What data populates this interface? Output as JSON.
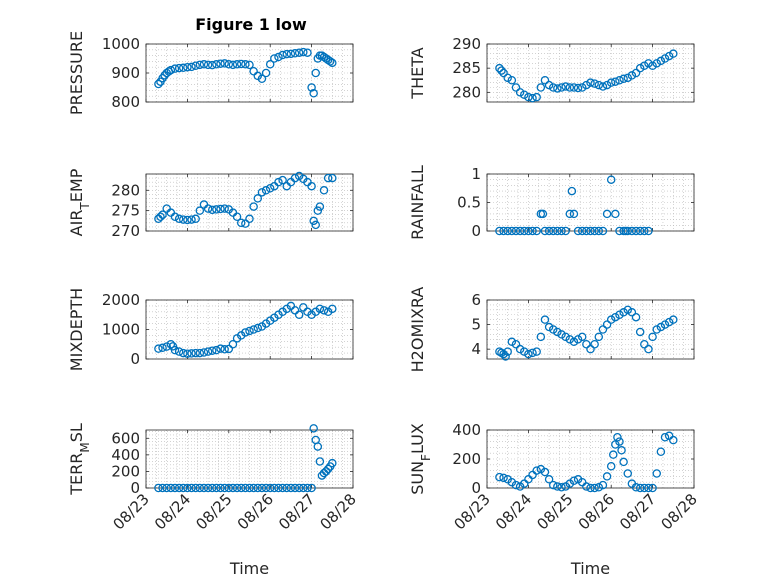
{
  "figure": {
    "title": "Figure 1 low",
    "marker_color": "#0072BD"
  },
  "chart_data": [
    {
      "type": "scatter",
      "title": "Figure 1 low",
      "xlabel": "",
      "ylabel": "PRESSURE",
      "xlim": [
        0,
        5
      ],
      "ylim": [
        800,
        1000
      ],
      "xticks": [
        0,
        1,
        2,
        3,
        4,
        5
      ],
      "xticklabels": [
        "",
        "",
        "",
        "",
        "",
        ""
      ],
      "yticks": [
        800,
        900,
        1000
      ],
      "yticklabels": [
        "800",
        "900",
        "1000"
      ],
      "grid": "dotted",
      "x": [
        0.3,
        0.35,
        0.4,
        0.45,
        0.5,
        0.55,
        0.6,
        0.7,
        0.8,
        0.9,
        1.0,
        1.1,
        1.2,
        1.3,
        1.4,
        1.5,
        1.6,
        1.7,
        1.8,
        1.9,
        2.0,
        2.1,
        2.2,
        2.3,
        2.4,
        2.5,
        2.6,
        2.7,
        2.8,
        2.9,
        3.0,
        3.1,
        3.2,
        3.3,
        3.4,
        3.5,
        3.6,
        3.7,
        3.8,
        3.9,
        4.0,
        4.05,
        4.1,
        4.15,
        4.2,
        4.25,
        4.3,
        4.35,
        4.4,
        4.45,
        4.5
      ],
      "y": [
        862,
        870,
        882,
        892,
        900,
        905,
        910,
        915,
        917,
        918,
        920,
        921,
        925,
        928,
        930,
        928,
        927,
        930,
        932,
        933,
        930,
        928,
        930,
        931,
        930,
        928,
        906,
        890,
        880,
        900,
        930,
        950,
        955,
        962,
        965,
        966,
        968,
        970,
        972,
        970,
        850,
        830,
        900,
        950,
        960,
        960,
        955,
        950,
        945,
        940,
        935
      ]
    },
    {
      "type": "scatter",
      "xlabel": "",
      "ylabel": "THETA",
      "xlim": [
        0,
        5
      ],
      "ylim": [
        278,
        290
      ],
      "xticks": [
        0,
        1,
        2,
        3,
        4,
        5
      ],
      "xticklabels": [
        "",
        "",
        "",
        "",
        "",
        ""
      ],
      "yticks": [
        280,
        285,
        290
      ],
      "yticklabels": [
        "280",
        "285",
        "290"
      ],
      "grid": "dotted",
      "x": [
        0.3,
        0.35,
        0.4,
        0.5,
        0.6,
        0.7,
        0.8,
        0.9,
        1.0,
        1.1,
        1.2,
        1.3,
        1.4,
        1.5,
        1.6,
        1.7,
        1.8,
        1.9,
        2.0,
        2.1,
        2.2,
        2.3,
        2.4,
        2.5,
        2.6,
        2.7,
        2.8,
        2.9,
        3.0,
        3.1,
        3.2,
        3.3,
        3.4,
        3.5,
        3.6,
        3.7,
        3.8,
        3.9,
        4.0,
        4.1,
        4.2,
        4.3,
        4.4,
        4.5
      ],
      "y": [
        285,
        284.5,
        284,
        283,
        282.5,
        281,
        280,
        279.5,
        279,
        278.8,
        279,
        281,
        282.5,
        281.5,
        281,
        280.8,
        281,
        281.2,
        281,
        281,
        280.9,
        281,
        281.5,
        282,
        281.8,
        281.5,
        281.2,
        281.5,
        282,
        282.2,
        282.5,
        282.8,
        283,
        283.5,
        284,
        285,
        285.5,
        286,
        285.5,
        286,
        286.5,
        287,
        287.5,
        288
      ]
    },
    {
      "type": "scatter",
      "xlabel": "",
      "ylabel": "AIR_TEMP",
      "xlim": [
        0,
        5
      ],
      "ylim": [
        270,
        284
      ],
      "xticks": [
        0,
        1,
        2,
        3,
        4,
        5
      ],
      "xticklabels": [
        "",
        "",
        "",
        "",
        "",
        ""
      ],
      "yticks": [
        270,
        275,
        280
      ],
      "yticklabels": [
        "270",
        "275",
        "280"
      ],
      "grid": "dotted",
      "x": [
        0.3,
        0.35,
        0.4,
        0.5,
        0.6,
        0.7,
        0.8,
        0.9,
        1.0,
        1.1,
        1.2,
        1.3,
        1.4,
        1.5,
        1.6,
        1.7,
        1.8,
        1.9,
        2.0,
        2.1,
        2.2,
        2.3,
        2.4,
        2.5,
        2.6,
        2.7,
        2.8,
        2.9,
        3.0,
        3.1,
        3.2,
        3.3,
        3.4,
        3.5,
        3.6,
        3.7,
        3.8,
        3.9,
        4.0,
        4.05,
        4.1,
        4.15,
        4.2,
        4.3,
        4.4,
        4.5
      ],
      "y": [
        273,
        273.5,
        274,
        275.5,
        274.5,
        273.5,
        273,
        272.8,
        272.7,
        272.8,
        273,
        275,
        276.5,
        275.5,
        275.2,
        275.3,
        275.4,
        275.5,
        275.3,
        274.5,
        273.5,
        272,
        271.8,
        273,
        276,
        278,
        279.5,
        280,
        280.5,
        281,
        282,
        282.5,
        281,
        282,
        283,
        283.5,
        282.8,
        282,
        281,
        272.5,
        271.5,
        275,
        276,
        280,
        283,
        283
      ]
    },
    {
      "type": "scatter",
      "xlabel": "",
      "ylabel": "RAINFALL",
      "xlim": [
        0,
        5
      ],
      "ylim": [
        0,
        1
      ],
      "xticks": [
        0,
        1,
        2,
        3,
        4,
        5
      ],
      "xticklabels": [
        "",
        "",
        "",
        "",
        "",
        ""
      ],
      "yticks": [
        0,
        0.5,
        1
      ],
      "yticklabels": [
        "0",
        "0.5",
        "1"
      ],
      "grid": "dotted",
      "x": [
        0.3,
        0.4,
        0.5,
        0.6,
        0.7,
        0.8,
        0.9,
        1.0,
        1.1,
        1.2,
        1.3,
        1.35,
        1.4,
        1.5,
        1.6,
        1.7,
        1.8,
        1.9,
        2.0,
        2.05,
        2.1,
        2.2,
        2.3,
        2.4,
        2.5,
        2.6,
        2.7,
        2.8,
        2.9,
        3.0,
        3.1,
        3.2,
        3.3,
        3.35,
        3.4,
        3.5,
        3.6,
        3.7,
        3.8,
        3.9
      ],
      "y": [
        0,
        0,
        0,
        0,
        0,
        0,
        0,
        0,
        0,
        0,
        0.3,
        0.3,
        0,
        0,
        0,
        0,
        0,
        0,
        0.3,
        0.7,
        0.3,
        0,
        0,
        0,
        0,
        0,
        0,
        0,
        0.3,
        0.9,
        0.3,
        0,
        0,
        0,
        0,
        0,
        0,
        0,
        0,
        0
      ]
    },
    {
      "type": "scatter",
      "xlabel": "",
      "ylabel": "MIXDEPTH",
      "xlim": [
        0,
        5
      ],
      "ylim": [
        0,
        2000
      ],
      "xticks": [
        0,
        1,
        2,
        3,
        4,
        5
      ],
      "xticklabels": [
        "",
        "",
        "",
        "",
        "",
        ""
      ],
      "yticks": [
        0,
        1000,
        2000
      ],
      "yticklabels": [
        "0",
        "1000",
        "2000"
      ],
      "grid": "dotted",
      "x": [
        0.3,
        0.4,
        0.5,
        0.6,
        0.65,
        0.7,
        0.8,
        0.9,
        1.0,
        1.1,
        1.2,
        1.3,
        1.4,
        1.5,
        1.6,
        1.7,
        1.8,
        1.9,
        2.0,
        2.1,
        2.2,
        2.3,
        2.4,
        2.5,
        2.6,
        2.7,
        2.8,
        2.9,
        3.0,
        3.1,
        3.2,
        3.3,
        3.4,
        3.5,
        3.6,
        3.7,
        3.8,
        3.9,
        4.0,
        4.1,
        4.2,
        4.3,
        4.4,
        4.5
      ],
      "y": [
        350,
        380,
        420,
        500,
        430,
        300,
        250,
        200,
        180,
        190,
        200,
        200,
        220,
        250,
        280,
        300,
        350,
        330,
        340,
        500,
        700,
        800,
        900,
        950,
        1000,
        1050,
        1100,
        1200,
        1300,
        1400,
        1500,
        1600,
        1700,
        1800,
        1650,
        1500,
        1750,
        1600,
        1500,
        1600,
        1700,
        1650,
        1600,
        1700
      ]
    },
    {
      "type": "scatter",
      "xlabel": "",
      "ylabel": "H2OMIXRA",
      "xlim": [
        0,
        5
      ],
      "ylim": [
        3.6,
        6
      ],
      "xticks": [
        0,
        1,
        2,
        3,
        4,
        5
      ],
      "xticklabels": [
        "",
        "",
        "",
        "",
        "",
        ""
      ],
      "yticks": [
        4,
        5,
        6
      ],
      "yticklabels": [
        "4",
        "5",
        "6"
      ],
      "grid": "dotted",
      "x": [
        0.3,
        0.35,
        0.4,
        0.45,
        0.5,
        0.6,
        0.7,
        0.8,
        0.9,
        1.0,
        1.1,
        1.2,
        1.3,
        1.4,
        1.5,
        1.6,
        1.7,
        1.8,
        1.9,
        2.0,
        2.1,
        2.2,
        2.3,
        2.4,
        2.5,
        2.6,
        2.7,
        2.8,
        2.9,
        3.0,
        3.1,
        3.2,
        3.3,
        3.4,
        3.5,
        3.6,
        3.7,
        3.8,
        3.9,
        4.0,
        4.1,
        4.2,
        4.3,
        4.4,
        4.5
      ],
      "y": [
        3.9,
        3.85,
        3.8,
        3.7,
        3.9,
        4.3,
        4.2,
        4.0,
        3.9,
        3.8,
        3.85,
        3.9,
        4.5,
        5.2,
        4.9,
        4.8,
        4.7,
        4.6,
        4.5,
        4.4,
        4.3,
        4.4,
        4.5,
        4.2,
        4.0,
        4.2,
        4.5,
        4.8,
        5.0,
        5.2,
        5.3,
        5.4,
        5.5,
        5.6,
        5.5,
        5.3,
        4.7,
        4.2,
        4.0,
        4.5,
        4.8,
        4.9,
        5.0,
        5.1,
        5.2
      ]
    },
    {
      "type": "scatter",
      "xlabel": "Time",
      "ylabel": "TERR_MSL",
      "xlim": [
        0,
        5
      ],
      "ylim": [
        0,
        700
      ],
      "xticks": [
        0,
        1,
        2,
        3,
        4,
        5
      ],
      "xticklabels": [
        "08/23",
        "08/24",
        "08/25",
        "08/26",
        "08/27",
        "08/28"
      ],
      "yticks": [
        0,
        200,
        400,
        600
      ],
      "yticklabels": [
        "0",
        "200",
        "400",
        "600"
      ],
      "grid": "dotted",
      "x": [
        0.3,
        0.4,
        0.5,
        0.6,
        0.7,
        0.8,
        0.9,
        1.0,
        1.1,
        1.2,
        1.3,
        1.4,
        1.5,
        1.6,
        1.7,
        1.8,
        1.9,
        2.0,
        2.1,
        2.2,
        2.3,
        2.4,
        2.5,
        2.6,
        2.7,
        2.8,
        2.9,
        3.0,
        3.1,
        3.2,
        3.3,
        3.4,
        3.5,
        3.6,
        3.7,
        3.8,
        3.9,
        4.0,
        4.05,
        4.1,
        4.15,
        4.2,
        4.25,
        4.3,
        4.35,
        4.4,
        4.45,
        4.5
      ],
      "y": [
        0,
        0,
        0,
        0,
        0,
        0,
        0,
        0,
        0,
        0,
        0,
        0,
        0,
        0,
        0,
        0,
        0,
        0,
        0,
        0,
        0,
        0,
        0,
        0,
        0,
        0,
        0,
        0,
        0,
        0,
        0,
        0,
        0,
        0,
        0,
        0,
        0,
        0,
        720,
        580,
        500,
        320,
        150,
        180,
        200,
        230,
        260,
        300
      ]
    },
    {
      "type": "scatter",
      "xlabel": "Time",
      "ylabel": "SUN_FLUX",
      "xlim": [
        0,
        5
      ],
      "ylim": [
        0,
        400
      ],
      "xticks": [
        0,
        1,
        2,
        3,
        4,
        5
      ],
      "xticklabels": [
        "08/23",
        "08/24",
        "08/25",
        "08/26",
        "08/27",
        "08/28"
      ],
      "yticks": [
        0,
        200,
        400
      ],
      "yticklabels": [
        "0",
        "200",
        "400"
      ],
      "grid": "dotted",
      "x": [
        0.3,
        0.4,
        0.5,
        0.6,
        0.7,
        0.8,
        0.9,
        1.0,
        1.1,
        1.2,
        1.3,
        1.4,
        1.5,
        1.6,
        1.7,
        1.8,
        1.9,
        2.0,
        2.1,
        2.2,
        2.3,
        2.4,
        2.5,
        2.6,
        2.7,
        2.8,
        2.9,
        3.0,
        3.05,
        3.1,
        3.15,
        3.2,
        3.25,
        3.3,
        3.4,
        3.5,
        3.6,
        3.7,
        3.8,
        3.9,
        4.0,
        4.1,
        4.2,
        4.3,
        4.4,
        4.5
      ],
      "y": [
        75,
        70,
        60,
        40,
        20,
        10,
        30,
        60,
        90,
        120,
        130,
        110,
        60,
        20,
        10,
        5,
        10,
        30,
        50,
        60,
        40,
        10,
        0,
        0,
        5,
        20,
        80,
        150,
        230,
        300,
        350,
        320,
        260,
        180,
        100,
        30,
        5,
        0,
        0,
        0,
        0,
        100,
        250,
        350,
        360,
        330
      ]
    }
  ]
}
